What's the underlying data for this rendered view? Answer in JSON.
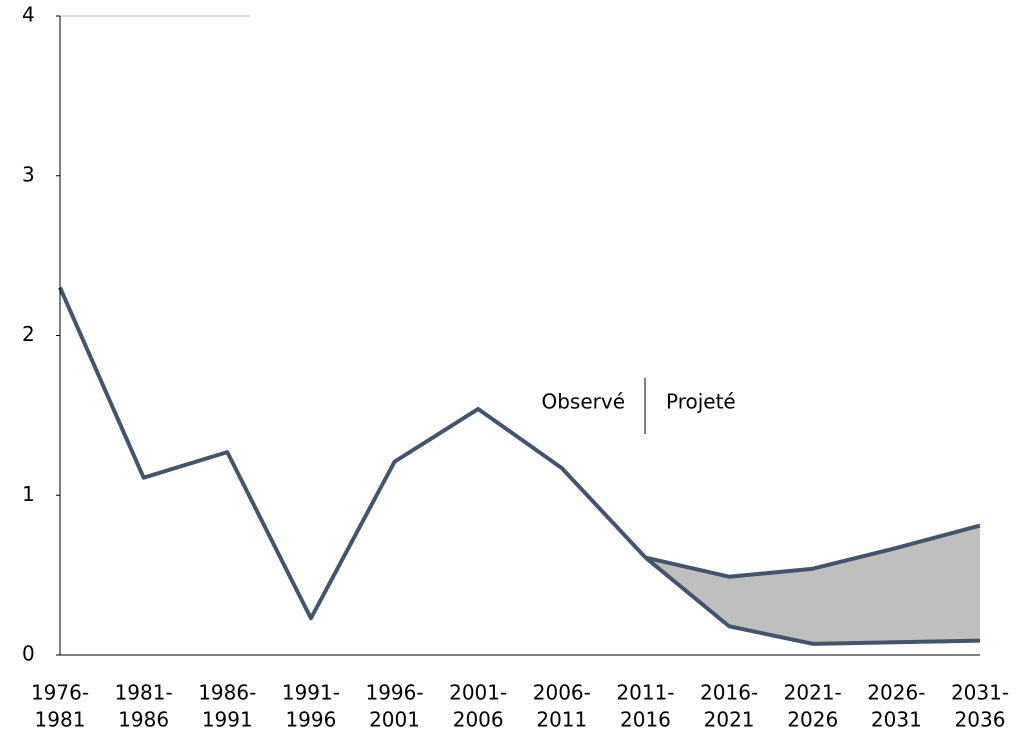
{
  "chart_data": {
    "type": "line",
    "categories": [
      [
        "1976-",
        "1981"
      ],
      [
        "1981-",
        "1986"
      ],
      [
        "1986-",
        "1991"
      ],
      [
        "1991-",
        "1996"
      ],
      [
        "1996-",
        "2001"
      ],
      [
        "2001-",
        "2006"
      ],
      [
        "2006-",
        "2011"
      ],
      [
        "2011-",
        "2016"
      ],
      [
        "2016-",
        "2021"
      ],
      [
        "2021-",
        "2026"
      ],
      [
        "2026-",
        "2031"
      ],
      [
        "2031-",
        "2036"
      ]
    ],
    "series": [
      {
        "color": "#44546a",
        "values": [
          2.3,
          1.11,
          1.27,
          0.23,
          1.21,
          1.54,
          1.17,
          0.61,
          null,
          null,
          null,
          null
        ]
      },
      {
        "color": "#44546a",
        "values": [
          null,
          null,
          null,
          null,
          null,
          null,
          null,
          0.61,
          0.49,
          0.54,
          0.67,
          0.81
        ]
      },
      {
        "color": "#44546a",
        "values": [
          null,
          null,
          null,
          null,
          null,
          null,
          null,
          0.61,
          0.18,
          0.07,
          0.08,
          0.09
        ]
      }
    ],
    "band_color": "#bfbfbf",
    "annotations": [
      "Observé",
      "Projeté"
    ],
    "ylim": [
      0,
      4
    ],
    "yticks": [
      0,
      1,
      2,
      3,
      4
    ]
  }
}
